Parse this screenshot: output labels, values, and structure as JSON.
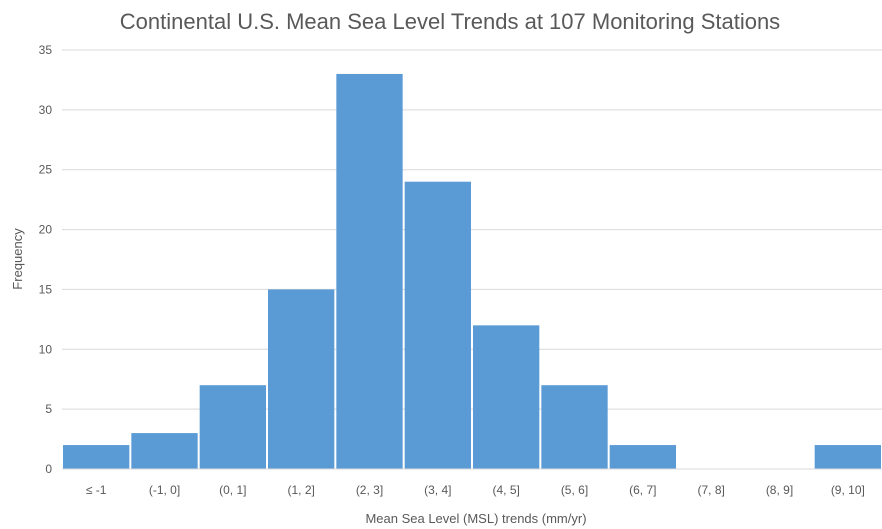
{
  "chart_data": {
    "type": "bar",
    "title": "Continental U.S. Mean Sea Level Trends at 107 Monitoring Stations",
    "xlabel": "Mean Sea Level (MSL) trends (mm/yr)",
    "ylabel": "Frequency",
    "categories": [
      "≤ -1",
      "(-1, 0]",
      "(0, 1]",
      "(1, 2]",
      "(2, 3]",
      "(3, 4]",
      "(4, 5]",
      "(5, 6]",
      "(6, 7]",
      "(7, 8]",
      "(8, 9]",
      "(9, 10]"
    ],
    "values": [
      2,
      3,
      7,
      15,
      33,
      24,
      12,
      7,
      2,
      0,
      0,
      2
    ],
    "ylim": [
      0,
      35
    ],
    "yticks": [
      0,
      5,
      10,
      15,
      20,
      25,
      30,
      35
    ],
    "grid": true,
    "legend": "none",
    "bar_color": "#5b9bd5",
    "grid_color": "#d9d9d9",
    "text_color": "#595959"
  }
}
